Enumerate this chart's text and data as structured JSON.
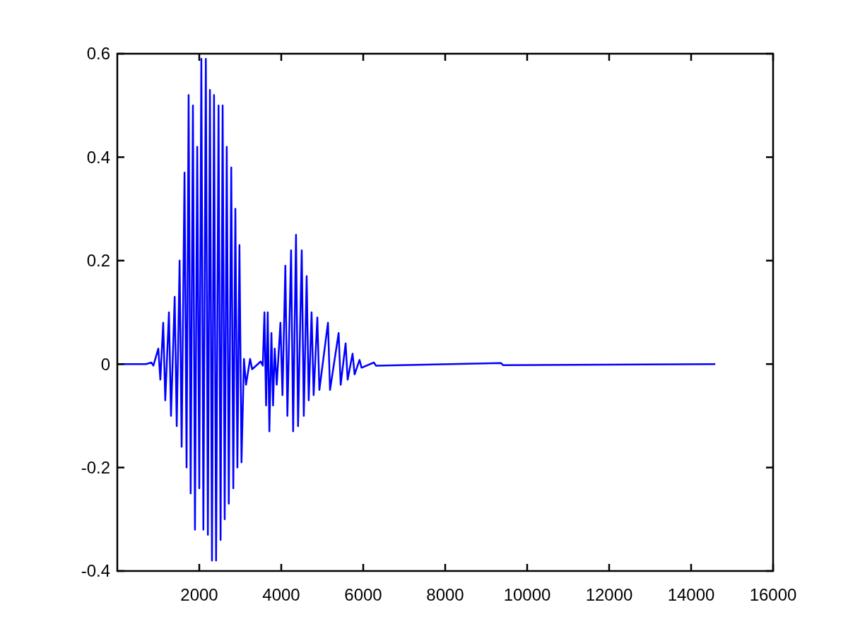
{
  "chart_data": {
    "type": "line",
    "xlim": [
      0,
      16000
    ],
    "ylim": [
      -0.4,
      0.6
    ],
    "xticks": [
      2000,
      4000,
      6000,
      8000,
      10000,
      12000,
      14000,
      16000
    ],
    "yticks": [
      -0.4,
      -0.2,
      0,
      0.2,
      0.4,
      0.6
    ],
    "grid": false,
    "line_style": "solid",
    "marker": "none",
    "series": [
      {
        "color": "#0000ff",
        "x": [
          0,
          700,
          830,
          880,
          1000,
          1050,
          1120,
          1170,
          1260,
          1310,
          1400,
          1450,
          1520,
          1570,
          1640,
          1690,
          1740,
          1790,
          1845,
          1895,
          1950,
          2000,
          2050,
          2100,
          2160,
          2210,
          2260,
          2310,
          2360,
          2410,
          2470,
          2520,
          2570,
          2620,
          2670,
          2720,
          2780,
          2830,
          2880,
          2930,
          2980,
          3030,
          3090,
          3140,
          3240,
          3290,
          3500,
          3550,
          3590,
          3630,
          3670,
          3710,
          3760,
          3800,
          3840,
          3890,
          3980,
          4030,
          4100,
          4150,
          4240,
          4290,
          4360,
          4410,
          4500,
          4550,
          4620,
          4670,
          4740,
          4790,
          4880,
          4930,
          5140,
          5190,
          5400,
          5450,
          5570,
          5620,
          5740,
          5790,
          5910,
          5960,
          6260,
          6310,
          9360,
          9410,
          14590
        ],
        "values": [
          0,
          0,
          0.003,
          -0.003,
          0.03,
          -0.03,
          0.08,
          -0.07,
          0.1,
          -0.1,
          0.13,
          -0.12,
          0.2,
          -0.16,
          0.37,
          -0.2,
          0.52,
          -0.25,
          0.5,
          -0.32,
          0.42,
          -0.24,
          0.59,
          -0.32,
          0.59,
          -0.33,
          0.53,
          -0.38,
          0.52,
          -0.38,
          0.5,
          -0.34,
          0.5,
          -0.3,
          0.42,
          -0.27,
          0.38,
          -0.24,
          0.3,
          -0.2,
          0.23,
          -0.19,
          0.01,
          -0.04,
          0.01,
          -0.01,
          0.005,
          -0.003,
          0.1,
          -0.08,
          0.1,
          -0.13,
          0.06,
          -0.08,
          0.03,
          -0.04,
          0.08,
          -0.06,
          0.19,
          -0.1,
          0.22,
          -0.13,
          0.25,
          -0.12,
          0.22,
          -0.1,
          0.17,
          -0.07,
          0.1,
          -0.06,
          0.09,
          -0.05,
          0.08,
          -0.05,
          0.06,
          -0.04,
          0.04,
          -0.03,
          0.02,
          -0.02,
          0.008,
          -0.007,
          0.003,
          -0.003,
          0.002,
          -0.002,
          0
        ]
      }
    ]
  }
}
